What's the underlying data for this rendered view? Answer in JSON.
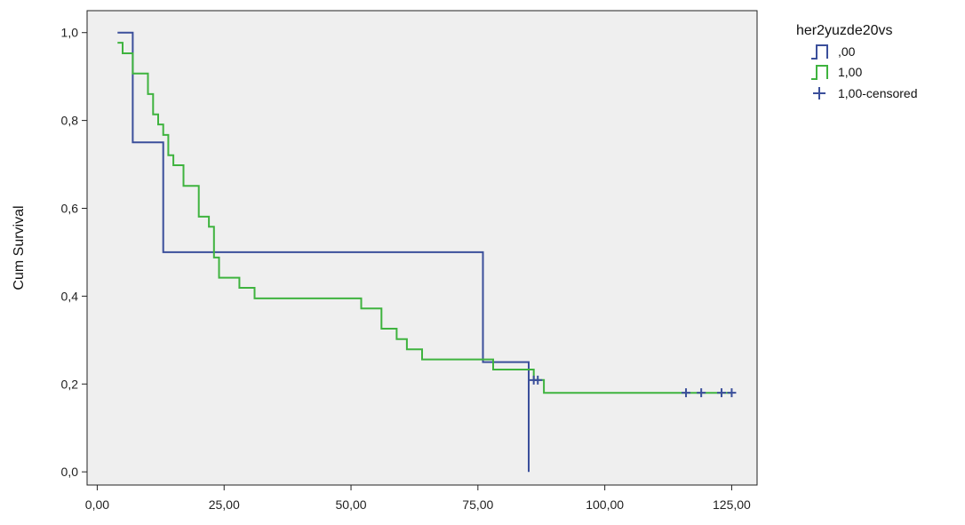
{
  "chart_data": {
    "type": "line",
    "subtype": "kaplan-meier",
    "title": "",
    "xlabel": "",
    "ylabel": "Cum Survival",
    "xlim": [
      -2,
      130
    ],
    "ylim": [
      -0.03,
      1.05
    ],
    "x_ticks": [
      0,
      25,
      50,
      75,
      100,
      125
    ],
    "x_tick_labels": [
      "0,00",
      "25,00",
      "50,00",
      "75,00",
      "100,00",
      "125,00"
    ],
    "y_ticks": [
      0,
      0.2,
      0.4,
      0.6,
      0.8,
      1.0
    ],
    "y_tick_labels": [
      "0,0",
      "0,2",
      "0,4",
      "0,6",
      "0,8",
      "1,0"
    ],
    "grid": false,
    "plot_background": "#efefef",
    "legend": {
      "title": "her2yuzde20vs",
      "position": "top-right",
      "entries": [
        {
          "label": ",00",
          "symbol": "step",
          "color": "#3b4f9b"
        },
        {
          "label": "1,00",
          "symbol": "step",
          "color": "#3fb33f"
        },
        {
          "label": "1,00-censored",
          "symbol": "plus",
          "color": "#3b4f9b"
        }
      ]
    },
    "series": [
      {
        "name": ",00",
        "color": "#3b4f9b",
        "steps": [
          [
            4,
            1.0
          ],
          [
            7,
            0.75
          ],
          [
            13,
            0.5
          ],
          [
            76,
            0.25
          ],
          [
            85,
            0.0
          ]
        ]
      },
      {
        "name": "1,00",
        "color": "#3fb33f",
        "steps": [
          [
            4,
            0.977
          ],
          [
            5,
            0.953
          ],
          [
            7,
            0.907
          ],
          [
            10,
            0.86
          ],
          [
            11,
            0.814
          ],
          [
            12,
            0.791
          ],
          [
            13,
            0.767
          ],
          [
            14,
            0.721
          ],
          [
            15,
            0.698
          ],
          [
            17,
            0.651
          ],
          [
            20,
            0.581
          ],
          [
            22,
            0.558
          ],
          [
            23,
            0.488
          ],
          [
            24,
            0.442
          ],
          [
            28,
            0.419
          ],
          [
            31,
            0.395
          ],
          [
            52,
            0.372
          ],
          [
            56,
            0.326
          ],
          [
            59,
            0.302
          ],
          [
            61,
            0.279
          ],
          [
            64,
            0.256
          ],
          [
            78,
            0.233
          ],
          [
            86,
            0.209
          ],
          [
            88,
            0.18
          ],
          [
            125,
            0.18
          ]
        ]
      }
    ],
    "censored": {
      "name": "1,00-censored",
      "color": "#3b4f9b",
      "points": [
        [
          86,
          0.209
        ],
        [
          86.8,
          0.209
        ],
        [
          116,
          0.18
        ],
        [
          119,
          0.18
        ],
        [
          123,
          0.18
        ],
        [
          125,
          0.18
        ]
      ]
    }
  }
}
